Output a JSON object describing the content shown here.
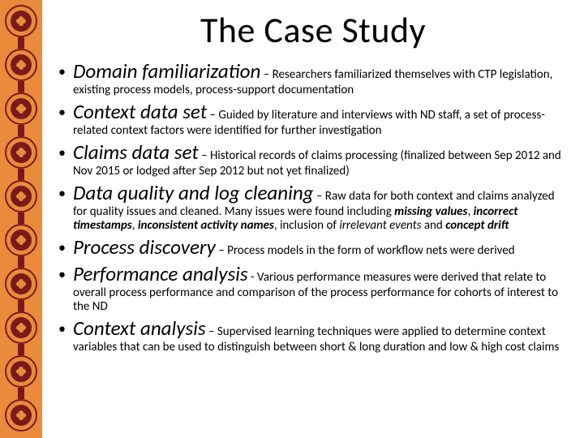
{
  "slide": {
    "title": "The Case Study",
    "border": {
      "strip_color": "#e98b3a",
      "motif_color": "#7a1a1a"
    },
    "bullets": [
      {
        "term": "Domain familiarization",
        "sep": " – ",
        "body_html": "Researchers familiarized themselves with CTP legislation, existing process models, process-support documentation"
      },
      {
        "term": "Context data set",
        "sep": " – ",
        "body_html": "Guided by literature and interviews with ND staff, a set of process-related context factors were identified for further investigation"
      },
      {
        "term": "Claims data set",
        "sep": " – ",
        "body_html": "Historical records of claims processing (finalized between Sep 2012 and Nov 2015 or lodged after Sep 2012 but not yet finalized)"
      },
      {
        "term": "Data quality and log cleaning",
        "sep": " – ",
        "body_html": "Raw data for both context and claims analyzed for quality issues and cleaned. Many issues were found including <span class=\"bi\">missing values</span>, <span class=\"bi\">incorrect timestamps</span>, <span class=\"bi\">inconsistent activity names</span>, inclusion of <span class=\"i\">irrelevant events</span> and <span class=\"bi\">concept drift</span>"
      },
      {
        "term": "Process discovery",
        "sep": " – ",
        "body_html": "Process models in the form of workflow nets were derived"
      },
      {
        "term": "Performance analysis",
        "sep": " - ",
        "body_html": "Various performance measures were derived that relate to overall process performance and comparison of the process performance for cohorts of interest to the ND"
      },
      {
        "term": "Context analysis",
        "sep": " – ",
        "body_html": "Supervised learning techniques were applied to determine context variables that can be used to distinguish between short & long duration and low & high cost claims"
      }
    ]
  }
}
